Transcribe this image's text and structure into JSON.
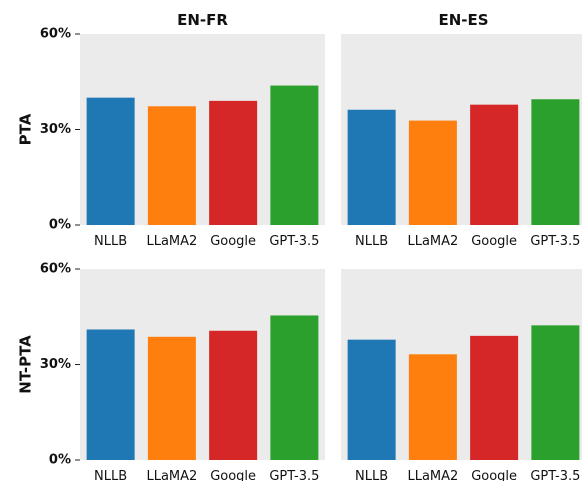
{
  "chart_data": {
    "type": "bar",
    "grid_rows": [
      "PTA",
      "NT-PTA"
    ],
    "grid_cols": [
      "EN-FR",
      "EN-ES"
    ],
    "categories": [
      "NLLB",
      "LLaMA2",
      "Google",
      "GPT-3.5"
    ],
    "colors": [
      "#1f77b4",
      "#ff7f0e",
      "#d62728",
      "#2ca02c"
    ],
    "ylim": [
      0,
      60
    ],
    "yticks": [
      0,
      30,
      60
    ],
    "ytick_labels": [
      "0%",
      "30%",
      "60%"
    ],
    "panels": [
      {
        "row": "PTA",
        "col": "EN-FR",
        "values": [
          40,
          37.3,
          39,
          43.8
        ]
      },
      {
        "row": "PTA",
        "col": "EN-ES",
        "values": [
          36.2,
          32.8,
          37.8,
          39.5
        ]
      },
      {
        "row": "NT-PTA",
        "col": "EN-FR",
        "values": [
          41,
          38.7,
          40.6,
          45.4
        ]
      },
      {
        "row": "NT-PTA",
        "col": "EN-ES",
        "values": [
          37.8,
          33.2,
          39,
          42.3
        ]
      }
    ],
    "grid": false,
    "legend": "none"
  }
}
